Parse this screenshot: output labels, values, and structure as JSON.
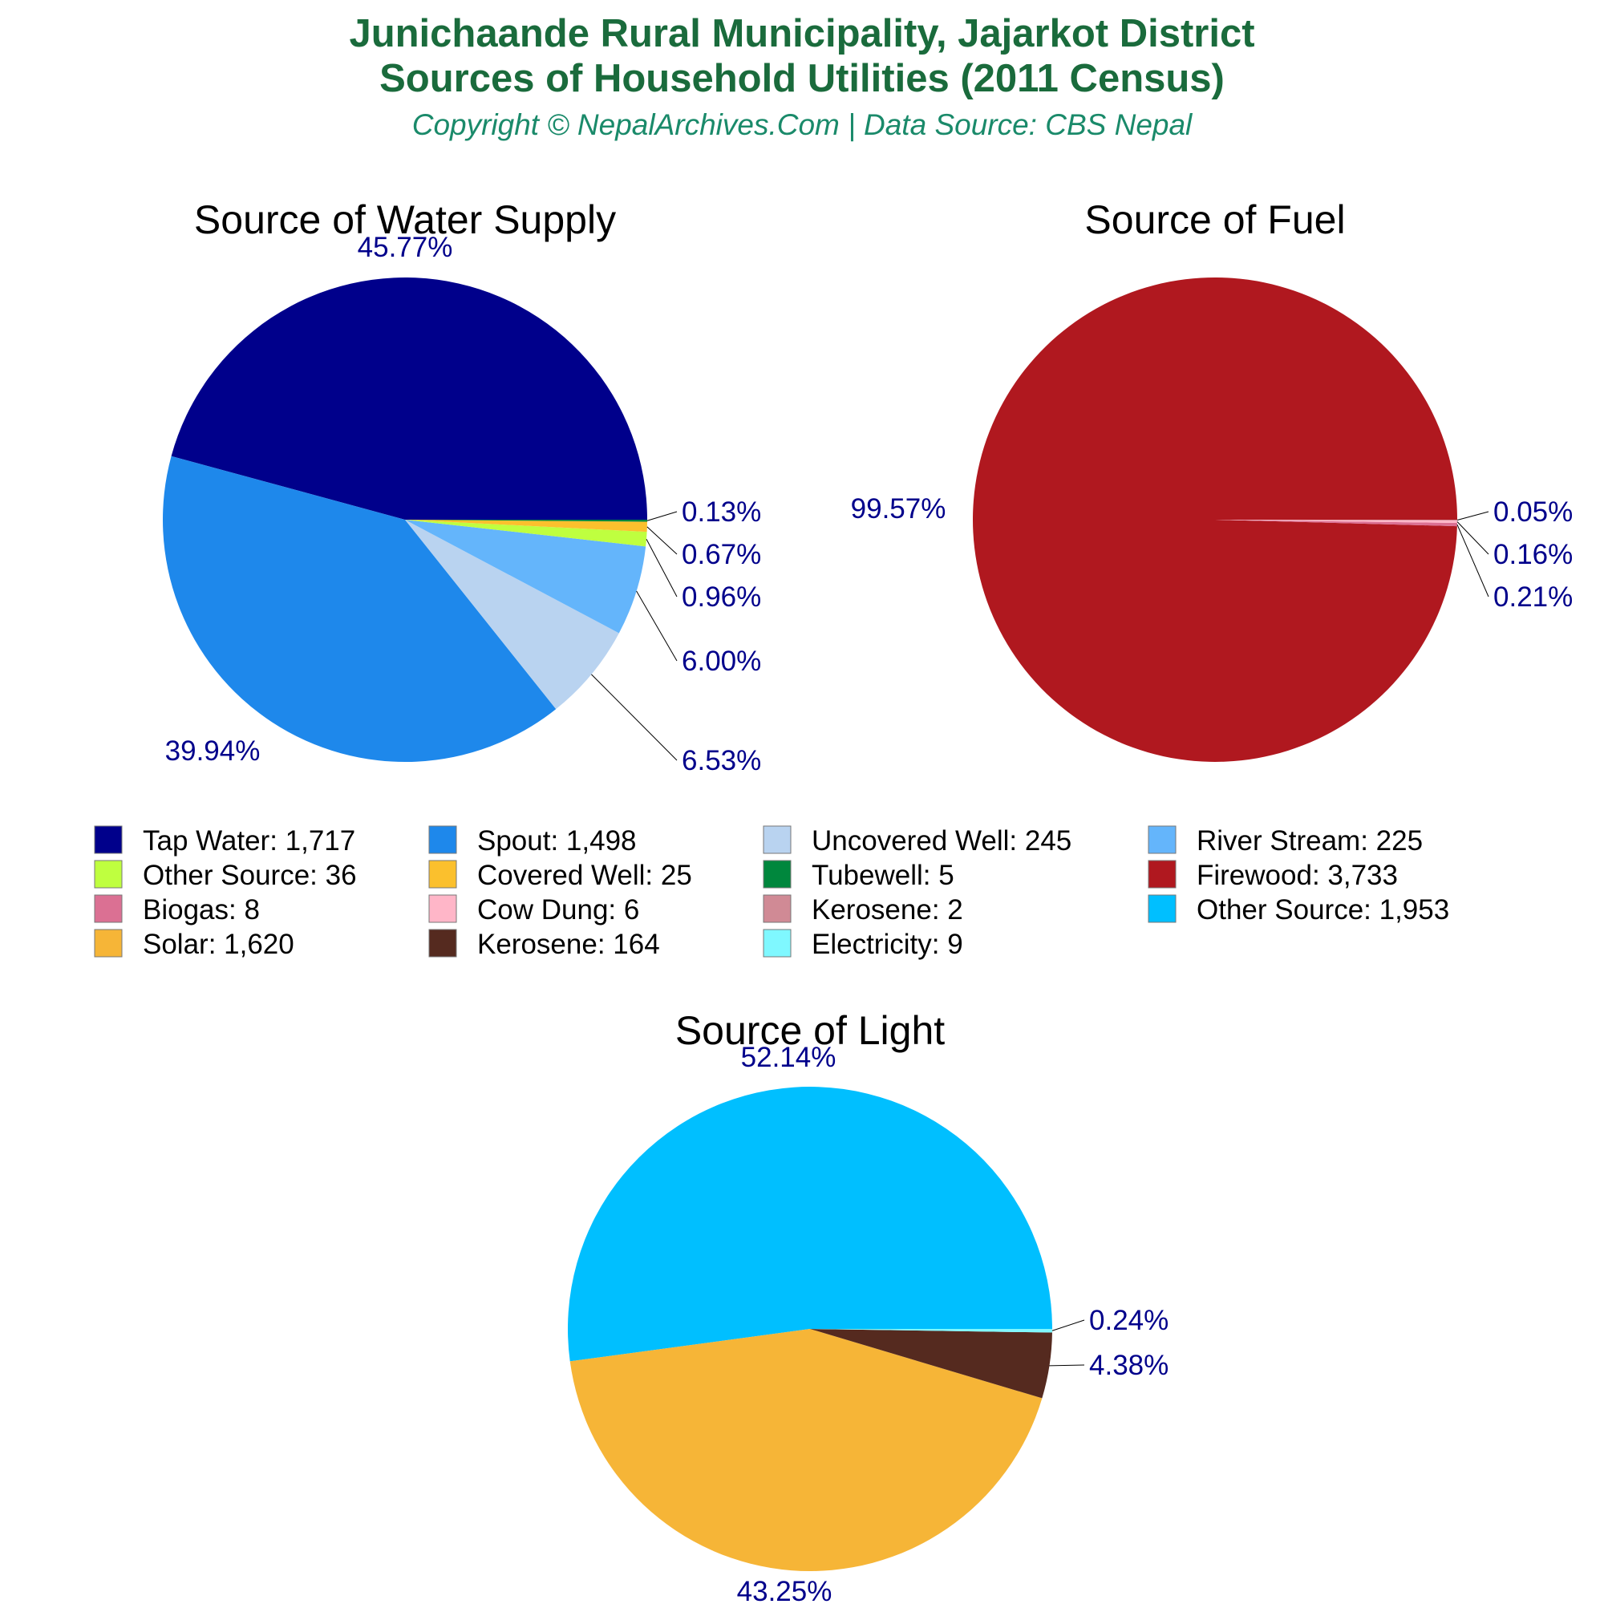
{
  "header": {
    "title_line1": "Junichaande Rural Municipality, Jajarkot District",
    "title_line2": "Sources of Household Utilities (2011 Census)",
    "subtitle": "Copyright © NepalArchives.Com | Data Source: CBS Nepal"
  },
  "chart_data": [
    {
      "type": "pie",
      "title": "Source of Water Supply",
      "slices": [
        {
          "label": "Tap Water",
          "value": 1717,
          "percent": "45.77%",
          "color": "#00008b"
        },
        {
          "label": "Spout",
          "value": 1498,
          "percent": "39.94%",
          "color": "#1e88eb"
        },
        {
          "label": "Uncovered Well",
          "value": 245,
          "percent": "6.53%",
          "color": "#b9d3f0"
        },
        {
          "label": "River Stream",
          "value": 225,
          "percent": "6.00%",
          "color": "#64b5fb"
        },
        {
          "label": "Other Source",
          "value": 36,
          "percent": "0.96%",
          "color": "#bfff3f"
        },
        {
          "label": "Covered Well",
          "value": 25,
          "percent": "0.67%",
          "color": "#fbc02d"
        },
        {
          "label": "Tubewell",
          "value": 5,
          "percent": "0.13%",
          "color": "#00873d"
        }
      ]
    },
    {
      "type": "pie",
      "title": "Source of Fuel",
      "slices": [
        {
          "label": "Firewood",
          "value": 3733,
          "percent": "99.57%",
          "color": "#b0181f"
        },
        {
          "label": "Biogas",
          "value": 8,
          "percent": "0.21%",
          "color": "#db7093"
        },
        {
          "label": "Cow Dung",
          "value": 6,
          "percent": "0.16%",
          "color": "#ffb6c8"
        },
        {
          "label": "Kerosene",
          "value": 2,
          "percent": "0.05%",
          "color": "#d08a95"
        }
      ]
    },
    {
      "type": "pie",
      "title": "Source of Light",
      "slices": [
        {
          "label": "Other Source",
          "value": 1953,
          "percent": "52.14%",
          "color": "#00bfff"
        },
        {
          "label": "Solar",
          "value": 1620,
          "percent": "43.25%",
          "color": "#f6b537"
        },
        {
          "label": "Kerosene",
          "value": 164,
          "percent": "4.38%",
          "color": "#552a1f"
        },
        {
          "label": "Electricity",
          "value": 9,
          "percent": "0.24%",
          "color": "#7ff8ff"
        }
      ]
    }
  ],
  "legend": {
    "items": [
      {
        "text": "Tap Water: 1,717",
        "color": "#00008b"
      },
      {
        "text": "Spout: 1,498",
        "color": "#1e88eb"
      },
      {
        "text": "Uncovered Well: 245",
        "color": "#b9d3f0"
      },
      {
        "text": "River Stream: 225",
        "color": "#64b5fb"
      },
      {
        "text": "Other Source: 36",
        "color": "#bfff3f"
      },
      {
        "text": "Covered Well: 25",
        "color": "#fbc02d"
      },
      {
        "text": "Tubewell: 5",
        "color": "#00873d"
      },
      {
        "text": "Firewood: 3,733",
        "color": "#b0181f"
      },
      {
        "text": "Biogas: 8",
        "color": "#db7093"
      },
      {
        "text": "Cow Dung: 6",
        "color": "#ffb6c8"
      },
      {
        "text": "Kerosene: 2",
        "color": "#d08a95"
      },
      {
        "text": "Other Source: 1,953",
        "color": "#00bfff"
      },
      {
        "text": "Solar: 1,620",
        "color": "#f6b537"
      },
      {
        "text": "Kerosene: 164",
        "color": "#552a1f"
      },
      {
        "text": "Electricity: 9",
        "color": "#7ff8ff"
      }
    ]
  }
}
